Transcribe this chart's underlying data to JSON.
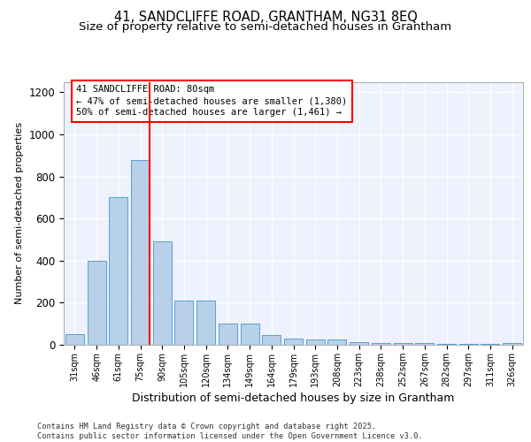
{
  "title": "41, SANDCLIFFE ROAD, GRANTHAM, NG31 8EQ",
  "subtitle": "Size of property relative to semi-detached houses in Grantham",
  "xlabel": "Distribution of semi-detached houses by size in Grantham",
  "ylabel": "Number of semi-detached properties",
  "categories": [
    "31sqm",
    "46sqm",
    "61sqm",
    "75sqm",
    "90sqm",
    "105sqm",
    "120sqm",
    "134sqm",
    "149sqm",
    "164sqm",
    "179sqm",
    "193sqm",
    "208sqm",
    "223sqm",
    "238sqm",
    "252sqm",
    "267sqm",
    "282sqm",
    "297sqm",
    "311sqm",
    "326sqm"
  ],
  "values": [
    50,
    400,
    700,
    880,
    490,
    210,
    210,
    100,
    100,
    45,
    30,
    25,
    25,
    12,
    10,
    8,
    8,
    5,
    5,
    5,
    10
  ],
  "bar_color": "#b8d0e8",
  "bar_edge_color": "#5a9fd4",
  "annotation_line1": "41 SANDCLIFFE ROAD: 80sqm",
  "annotation_line2": "← 47% of semi-detached houses are smaller (1,380)",
  "annotation_line3": "50% of semi-detached houses are larger (1,461) →",
  "ylim": [
    0,
    1250
  ],
  "yticks": [
    0,
    200,
    400,
    600,
    800,
    1000,
    1200
  ],
  "footer_line1": "Contains HM Land Registry data © Crown copyright and database right 2025.",
  "footer_line2": "Contains public sector information licensed under the Open Government Licence v3.0.",
  "background_color": "#eef2ff",
  "title_fontsize": 10.5,
  "subtitle_fontsize": 9.5,
  "annotation_fontsize": 7.5,
  "ylabel_fontsize": 8,
  "xlabel_fontsize": 9,
  "ytick_fontsize": 8.5,
  "xtick_fontsize": 7
}
